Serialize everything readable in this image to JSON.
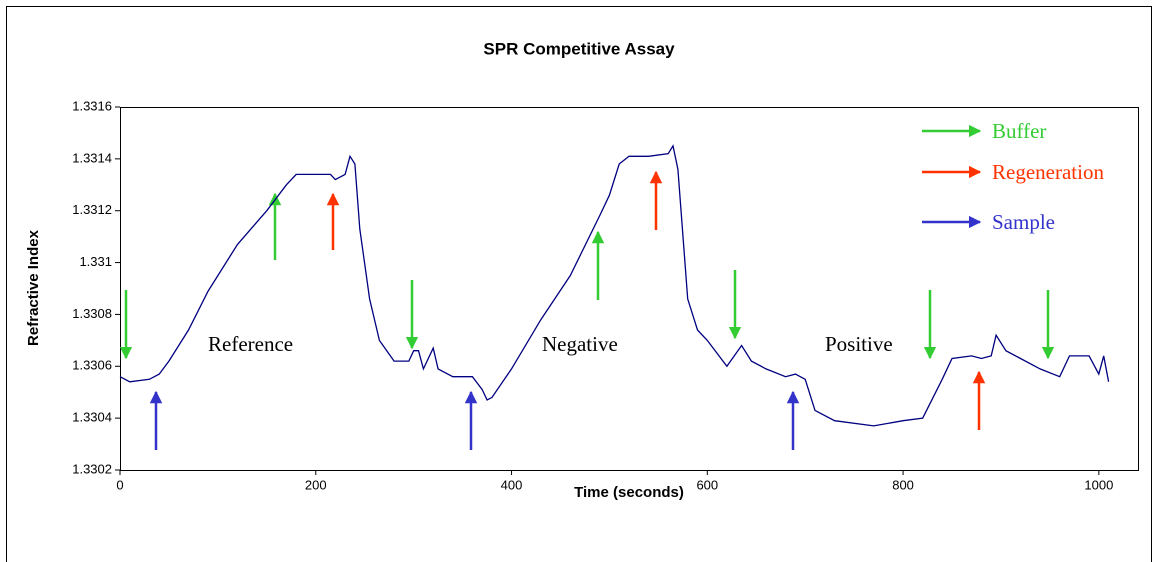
{
  "chart_data": {
    "type": "line",
    "title": "SPR Competitive Assay",
    "x_label": "Time (seconds)",
    "y_label": "Refractive Index",
    "xlim": [
      0,
      1040
    ],
    "xticks": [
      0,
      200,
      400,
      600,
      800,
      1000
    ],
    "ylim": [
      1.3302,
      1.3316
    ],
    "yticks": [
      1.3302,
      1.3304,
      1.3306,
      1.3308,
      1.331,
      1.3312,
      1.3314,
      1.3316
    ],
    "grid": false,
    "series": [
      {
        "color": "#000080",
        "x": [
          0,
          10,
          30,
          40,
          50,
          70,
          90,
          120,
          150,
          170,
          180,
          200,
          215,
          220,
          230,
          235,
          240,
          245,
          255,
          265,
          280,
          295,
          300,
          305,
          310,
          320,
          325,
          340,
          360,
          370,
          375,
          380,
          400,
          430,
          460,
          490,
          500,
          510,
          520,
          540,
          560,
          565,
          570,
          580,
          590,
          600,
          620,
          635,
          645,
          660,
          680,
          690,
          700,
          710,
          730,
          770,
          800,
          820,
          840,
          850,
          870,
          880,
          890,
          895,
          905,
          920,
          940,
          960,
          970,
          990,
          1000,
          1005,
          1010
        ],
        "values": [
          1.33056,
          1.33054,
          1.33055,
          1.33057,
          1.33062,
          1.33074,
          1.33089,
          1.33107,
          1.3312,
          1.3313,
          1.33134,
          1.33134,
          1.33134,
          1.33132,
          1.33134,
          1.33141,
          1.33138,
          1.33113,
          1.33086,
          1.3307,
          1.33062,
          1.33062,
          1.33066,
          1.33066,
          1.33059,
          1.33067,
          1.33059,
          1.33056,
          1.33056,
          1.33051,
          1.33047,
          1.33048,
          1.33059,
          1.33078,
          1.33095,
          1.33118,
          1.33126,
          1.33138,
          1.33141,
          1.33141,
          1.33142,
          1.33145,
          1.33136,
          1.33086,
          1.33074,
          1.3307,
          1.3306,
          1.33068,
          1.33062,
          1.33059,
          1.33056,
          1.33057,
          1.33055,
          1.33043,
          1.33039,
          1.33037,
          1.33039,
          1.3304,
          1.33055,
          1.33063,
          1.33064,
          1.33063,
          1.33064,
          1.33072,
          1.33066,
          1.33063,
          1.33059,
          1.33056,
          1.33064,
          1.33064,
          1.33057,
          1.33064,
          1.33054
        ]
      }
    ],
    "annotations": [
      {
        "text": "Reference",
        "color": "#000000"
      },
      {
        "text": "Negative",
        "color": "#000000"
      },
      {
        "text": "Positive",
        "color": "#000000"
      },
      {
        "text": "Buffer",
        "color": "#33cc33"
      },
      {
        "text": "Regeneration",
        "color": "#ff3300"
      },
      {
        "text": "Sample",
        "color": "#3333cc"
      }
    ]
  }
}
